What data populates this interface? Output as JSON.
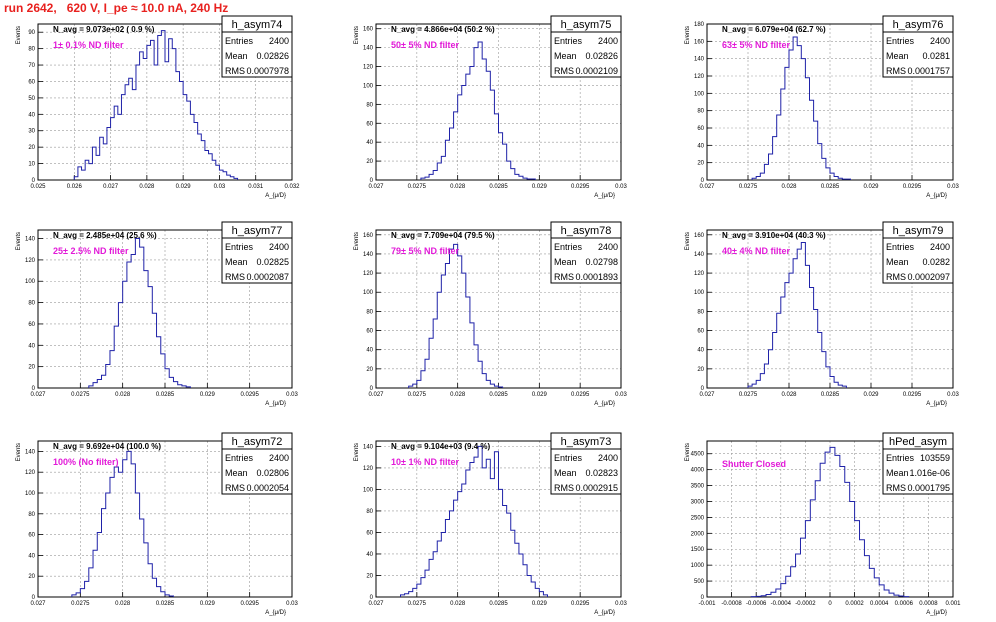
{
  "header": {
    "title": "run 2642,   620 V, I_pe ≈ 10.0 nA, 240 Hz"
  },
  "colors": {
    "histogram": "#1f22a8",
    "annotation": "#e21ad8",
    "title": "#e8211f",
    "grid": "#9a9a9a"
  },
  "chart_data": [
    {
      "type": "histogram",
      "name": "h_asym74",
      "entries": "2400",
      "mean": "0.02826",
      "rms": "0.0007978",
      "navg_label": "N_avg = 9.073e+02 ( 0.9 %)",
      "filter_label": "1± 0.1% ND filter",
      "ylabel": "Events",
      "xlabel": "A_{μ/D}",
      "xlim": [
        0.025,
        0.032
      ],
      "ylim": [
        0,
        95
      ],
      "xticks": [
        0.025,
        0.026,
        0.027,
        0.028,
        0.029,
        0.03,
        0.031,
        0.032
      ],
      "xtick_labels": [
        "0.025",
        "0.026",
        "0.027",
        "0.028",
        "0.029",
        "0.03",
        "0.031",
        "0.032"
      ],
      "yticks": [
        0,
        10,
        20,
        30,
        40,
        50,
        60,
        70,
        80,
        90
      ],
      "ytick_labels": [
        "0",
        "10",
        "20",
        "30",
        "40",
        "50",
        "60",
        "70",
        "80",
        "90"
      ],
      "bin_edges": [
        0.026,
        0.0261,
        0.0262,
        0.0263,
        0.0264,
        0.0265,
        0.0266,
        0.0267,
        0.0268,
        0.0269,
        0.027,
        0.0271,
        0.0272,
        0.0273,
        0.0274,
        0.0275,
        0.0276,
        0.0277,
        0.0278,
        0.0279,
        0.028,
        0.0281,
        0.0282,
        0.0283,
        0.0284,
        0.0285,
        0.0286,
        0.0287,
        0.0288,
        0.0289,
        0.029,
        0.0291,
        0.0292,
        0.0293,
        0.0294,
        0.0295,
        0.0296,
        0.0297,
        0.0298,
        0.0299,
        0.03,
        0.0301,
        0.0302,
        0.0303,
        0.0304,
        0.0305
      ],
      "counts": [
        2,
        8,
        6,
        12,
        10,
        20,
        15,
        26,
        22,
        32,
        38,
        45,
        40,
        52,
        58,
        62,
        55,
        70,
        78,
        74,
        82,
        85,
        70,
        88,
        91,
        72,
        86,
        80,
        66,
        60,
        52,
        48,
        40,
        35,
        28,
        24,
        18,
        16,
        12,
        9,
        6,
        5,
        3,
        2,
        1
      ]
    },
    {
      "type": "histogram",
      "name": "h_asym75",
      "entries": "2400",
      "mean": "0.02826",
      "rms": "0.0002109",
      "navg_label": "N_avg = 4.866e+04 (50.2 %)",
      "filter_label": "50± 5% ND filter",
      "ylabel": "Events",
      "xlabel": "A_{μ/D}",
      "xlim": [
        0.027,
        0.03
      ],
      "ylim": [
        0,
        165
      ],
      "xticks": [
        0.027,
        0.0275,
        0.028,
        0.0285,
        0.029,
        0.0295,
        0.03
      ],
      "xtick_labels": [
        "0.027",
        "0.0275",
        "0.028",
        "0.0285",
        "0.029",
        "0.0295",
        "0.03"
      ],
      "yticks": [
        0,
        20,
        40,
        60,
        80,
        100,
        120,
        140,
        160
      ],
      "ytick_labels": [
        "0",
        "20",
        "40",
        "60",
        "80",
        "100",
        "120",
        "140",
        "160"
      ],
      "bin_edges": [
        0.02755,
        0.0276,
        0.02765,
        0.0277,
        0.02775,
        0.0278,
        0.02785,
        0.0279,
        0.02795,
        0.028,
        0.02805,
        0.0281,
        0.02815,
        0.0282,
        0.02825,
        0.0283,
        0.02835,
        0.0284,
        0.02845,
        0.0285,
        0.02855,
        0.0286,
        0.02865,
        0.0287,
        0.02875,
        0.0288,
        0.02885,
        0.0289,
        0.02895
      ],
      "counts": [
        2,
        3,
        6,
        10,
        18,
        25,
        42,
        55,
        72,
        90,
        100,
        112,
        120,
        140,
        146,
        128,
        115,
        95,
        70,
        50,
        38,
        20,
        12,
        6,
        4,
        2,
        1,
        1
      ]
    },
    {
      "type": "histogram",
      "name": "h_asym76",
      "entries": "2400",
      "mean": "0.0281",
      "rms": "0.0001757",
      "navg_label": "N_avg = 6.079e+04 (62.7 %)",
      "filter_label": "63± 5% ND filter",
      "ylabel": "Events",
      "xlabel": "A_{μ/D}",
      "xlim": [
        0.027,
        0.03
      ],
      "ylim": [
        0,
        180
      ],
      "xticks": [
        0.027,
        0.0275,
        0.028,
        0.0285,
        0.029,
        0.0295,
        0.03
      ],
      "xtick_labels": [
        "0.027",
        "0.0275",
        "0.028",
        "0.0285",
        "0.029",
        "0.0295",
        "0.03"
      ],
      "yticks": [
        0,
        20,
        40,
        60,
        80,
        100,
        120,
        140,
        160,
        180
      ],
      "ytick_labels": [
        "0",
        "20",
        "40",
        "60",
        "80",
        "100",
        "120",
        "140",
        "160",
        "180"
      ],
      "bin_edges": [
        0.02755,
        0.0276,
        0.02765,
        0.0277,
        0.02775,
        0.0278,
        0.02785,
        0.0279,
        0.02795,
        0.028,
        0.02805,
        0.0281,
        0.02815,
        0.0282,
        0.02825,
        0.0283,
        0.02835,
        0.0284,
        0.02845,
        0.0285,
        0.02855,
        0.0286,
        0.02865,
        0.0287,
        0.02875
      ],
      "counts": [
        2,
        4,
        8,
        18,
        30,
        50,
        75,
        105,
        130,
        150,
        165,
        155,
        140,
        118,
        92,
        68,
        42,
        25,
        14,
        8,
        4,
        2,
        1,
        1
      ]
    },
    {
      "type": "histogram",
      "name": "h_asym77",
      "entries": "2400",
      "mean": "0.02825",
      "rms": "0.0002087",
      "navg_label": "N_avg = 2.485e+04 (25.6 %)",
      "filter_label": "25± 2.5% ND filter",
      "ylabel": "Events",
      "xlabel": "A_{μ/D}",
      "xlim": [
        0.027,
        0.03
      ],
      "ylim": [
        0,
        148
      ],
      "xticks": [
        0.027,
        0.0275,
        0.028,
        0.0285,
        0.029,
        0.0295,
        0.03
      ],
      "xtick_labels": [
        "0.027",
        "0.0275",
        "0.028",
        "0.0285",
        "0.029",
        "0.0295",
        "0.03"
      ],
      "yticks": [
        0,
        20,
        40,
        60,
        80,
        100,
        120,
        140
      ],
      "ytick_labels": [
        "0",
        "20",
        "40",
        "60",
        "80",
        "100",
        "120",
        "140"
      ],
      "bin_edges": [
        0.0276,
        0.02765,
        0.0277,
        0.02775,
        0.0278,
        0.02785,
        0.0279,
        0.02795,
        0.028,
        0.02805,
        0.0281,
        0.02815,
        0.0282,
        0.02825,
        0.0283,
        0.02835,
        0.0284,
        0.02845,
        0.0285,
        0.02855,
        0.0286,
        0.02865,
        0.0287,
        0.02875,
        0.0288
      ],
      "counts": [
        2,
        5,
        8,
        12,
        22,
        35,
        58,
        80,
        100,
        118,
        125,
        140,
        132,
        110,
        95,
        70,
        48,
        32,
        18,
        10,
        6,
        3,
        2,
        1
      ]
    },
    {
      "type": "histogram",
      "name": "h_asym78",
      "entries": "2400",
      "mean": "0.02798",
      "rms": "0.0001893",
      "navg_label": "N_avg = 7.709e+04 (79.5 %)",
      "filter_label": "79± 5% ND filter",
      "ylabel": "Events",
      "xlabel": "A_{μ/D}",
      "xlim": [
        0.027,
        0.03
      ],
      "ylim": [
        0,
        165
      ],
      "xticks": [
        0.027,
        0.0275,
        0.028,
        0.0285,
        0.029,
        0.0295,
        0.03
      ],
      "xtick_labels": [
        "0.027",
        "0.0275",
        "0.028",
        "0.0285",
        "0.029",
        "0.0295",
        "0.03"
      ],
      "yticks": [
        0,
        20,
        40,
        60,
        80,
        100,
        120,
        140,
        160
      ],
      "ytick_labels": [
        "0",
        "20",
        "40",
        "60",
        "80",
        "100",
        "120",
        "140",
        "160"
      ],
      "bin_edges": [
        0.0274,
        0.02745,
        0.0275,
        0.02755,
        0.0276,
        0.02765,
        0.0277,
        0.02775,
        0.0278,
        0.02785,
        0.0279,
        0.02795,
        0.028,
        0.02805,
        0.0281,
        0.02815,
        0.0282,
        0.02825,
        0.0283,
        0.02835,
        0.0284,
        0.02845,
        0.0285,
        0.02855
      ],
      "counts": [
        2,
        4,
        8,
        18,
        30,
        52,
        72,
        100,
        118,
        130,
        145,
        150,
        138,
        120,
        95,
        68,
        45,
        28,
        15,
        8,
        4,
        2,
        1
      ]
    },
    {
      "type": "histogram",
      "name": "h_asym79",
      "entries": "2400",
      "mean": "0.0282",
      "rms": "0.0002097",
      "navg_label": "N_avg = 3.910e+04 (40.3 %)",
      "filter_label": "40± 4% ND filter",
      "ylabel": "Events",
      "xlabel": "A_{μ/D}",
      "xlim": [
        0.027,
        0.03
      ],
      "ylim": [
        0,
        165
      ],
      "xticks": [
        0.027,
        0.0275,
        0.028,
        0.0285,
        0.029,
        0.0295,
        0.03
      ],
      "xtick_labels": [
        "0.027",
        "0.0275",
        "0.028",
        "0.0285",
        "0.029",
        "0.0295",
        "0.03"
      ],
      "yticks": [
        0,
        20,
        40,
        60,
        80,
        100,
        120,
        140,
        160
      ],
      "ytick_labels": [
        "0",
        "20",
        "40",
        "60",
        "80",
        "100",
        "120",
        "140",
        "160"
      ],
      "bin_edges": [
        0.0275,
        0.02755,
        0.0276,
        0.02765,
        0.0277,
        0.02775,
        0.0278,
        0.02785,
        0.0279,
        0.02795,
        0.028,
        0.02805,
        0.0281,
        0.02815,
        0.0282,
        0.02825,
        0.0283,
        0.02835,
        0.0284,
        0.02845,
        0.0285,
        0.02855,
        0.0286,
        0.02865,
        0.0287
      ],
      "counts": [
        2,
        4,
        8,
        15,
        25,
        40,
        58,
        78,
        95,
        110,
        120,
        135,
        145,
        152,
        128,
        105,
        82,
        58,
        38,
        22,
        12,
        6,
        3,
        2
      ]
    },
    {
      "type": "histogram",
      "name": "h_asym72",
      "entries": "2400",
      "mean": "0.02806",
      "rms": "0.0002054",
      "navg_label": "N_avg = 9.692e+04 (100.0 %)",
      "filter_label": "100% (No filter)",
      "ylabel": "Events",
      "xlabel": "A_{μ/D}",
      "xlim": [
        0.027,
        0.03
      ],
      "ylim": [
        0,
        150
      ],
      "xticks": [
        0.027,
        0.0275,
        0.028,
        0.0285,
        0.029,
        0.0295,
        0.03
      ],
      "xtick_labels": [
        "0.027",
        "0.0275",
        "0.028",
        "0.0285",
        "0.029",
        "0.0295",
        "0.03"
      ],
      "yticks": [
        0,
        20,
        40,
        60,
        80,
        100,
        120,
        140
      ],
      "ytick_labels": [
        "0",
        "20",
        "40",
        "60",
        "80",
        "100",
        "120",
        "140"
      ],
      "bin_edges": [
        0.0274,
        0.02745,
        0.0275,
        0.02755,
        0.0276,
        0.02765,
        0.0277,
        0.02775,
        0.0278,
        0.02785,
        0.0279,
        0.02795,
        0.028,
        0.02805,
        0.0281,
        0.02815,
        0.0282,
        0.02825,
        0.0283,
        0.02835,
        0.0284,
        0.02845,
        0.0285,
        0.02855,
        0.0286
      ],
      "counts": [
        2,
        4,
        8,
        15,
        28,
        45,
        62,
        85,
        100,
        115,
        125,
        120,
        132,
        140,
        128,
        100,
        75,
        52,
        32,
        18,
        10,
        5,
        2,
        1
      ]
    },
    {
      "type": "histogram",
      "name": "h_asym73",
      "entries": "2400",
      "mean": "0.02823",
      "rms": "0.0002915",
      "navg_label": "N_avg = 9.104e+03 (9.4 %)",
      "filter_label": "10± 1% ND filter",
      "ylabel": "Events",
      "xlabel": "A_{μ/D}",
      "xlim": [
        0.027,
        0.03
      ],
      "ylim": [
        0,
        145
      ],
      "xticks": [
        0.027,
        0.0275,
        0.028,
        0.0285,
        0.029,
        0.0295,
        0.03
      ],
      "xtick_labels": [
        "0.027",
        "0.0275",
        "0.028",
        "0.0285",
        "0.029",
        "0.0295",
        "0.03"
      ],
      "yticks": [
        0,
        20,
        40,
        60,
        80,
        100,
        120,
        140
      ],
      "ytick_labels": [
        "0",
        "20",
        "40",
        "60",
        "80",
        "100",
        "120",
        "140"
      ],
      "bin_edges": [
        0.0273,
        0.02735,
        0.0274,
        0.02745,
        0.0275,
        0.02755,
        0.0276,
        0.02765,
        0.0277,
        0.02775,
        0.0278,
        0.02785,
        0.0279,
        0.02795,
        0.028,
        0.02805,
        0.0281,
        0.02815,
        0.0282,
        0.02825,
        0.0283,
        0.02835,
        0.0284,
        0.02845,
        0.0285,
        0.02855,
        0.0286,
        0.02865,
        0.0287,
        0.02875,
        0.0288,
        0.02885,
        0.0289,
        0.02895,
        0.029,
        0.02905,
        0.0291
      ],
      "counts": [
        2,
        3,
        5,
        8,
        12,
        18,
        25,
        35,
        42,
        52,
        60,
        72,
        80,
        90,
        98,
        105,
        118,
        125,
        130,
        140,
        120,
        128,
        110,
        135,
        100,
        85,
        78,
        62,
        50,
        40,
        30,
        20,
        14,
        8,
        5,
        2
      ]
    },
    {
      "type": "histogram",
      "name": "hPed_asym",
      "entries": "103559",
      "mean": "1.016e-06",
      "rms": "0.0001795",
      "navg_label": "",
      "filter_label": "Shutter Closed",
      "ylabel": "Events",
      "xlabel": "A_{μ/D}",
      "xlim": [
        -0.001,
        0.001
      ],
      "ylim": [
        0,
        4900
      ],
      "xticks": [
        -0.001,
        -0.0008,
        -0.0006,
        -0.0004,
        -0.0002,
        0,
        0.0002,
        0.0004,
        0.0006,
        0.0008,
        0.001
      ],
      "xtick_labels": [
        "-0.001",
        "-0.0008",
        "-0.0006",
        "-0.0004",
        "-0.0002",
        "0",
        "0.0002",
        "0.0004",
        "0.0006",
        "0.0008",
        "0.001"
      ],
      "yticks": [
        0,
        500,
        1000,
        1500,
        2000,
        2500,
        3000,
        3500,
        4000,
        4500
      ],
      "ytick_labels": [
        "0",
        "500",
        "1000",
        "1500",
        "2000",
        "2500",
        "3000",
        "3500",
        "4000",
        "4500"
      ],
      "bin_edges": [
        -0.00064,
        -0.0006,
        -0.00056,
        -0.00052,
        -0.00048,
        -0.00044,
        -0.0004,
        -0.00036,
        -0.00032,
        -0.00028,
        -0.00024,
        -0.0002,
        -0.00016,
        -0.00012,
        -8e-05,
        -4e-05,
        0,
        4e-05,
        8e-05,
        0.00012,
        0.00016,
        0.0002,
        0.00024,
        0.00028,
        0.00032,
        0.00036,
        0.0004,
        0.00044,
        0.00048,
        0.00052,
        0.00056,
        0.0006,
        0.00064
      ],
      "counts": [
        10,
        20,
        40,
        80,
        150,
        250,
        420,
        650,
        950,
        1350,
        1850,
        2400,
        3050,
        3650,
        4200,
        4550,
        4700,
        4450,
        4100,
        3600,
        3000,
        2400,
        1800,
        1300,
        900,
        600,
        380,
        220,
        120,
        60,
        30,
        12
      ]
    }
  ]
}
